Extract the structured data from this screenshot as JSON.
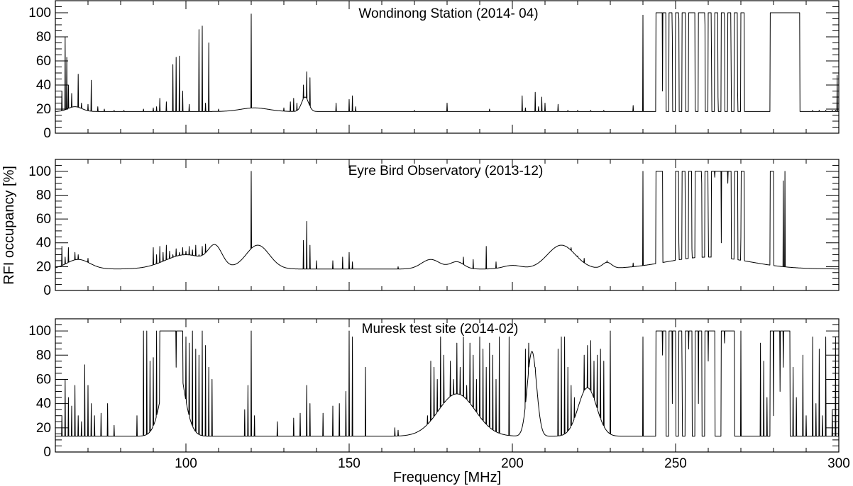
{
  "chart_data": [
    {
      "type": "line",
      "title": "Wondinong Station (2014- 04)",
      "xlim": [
        60,
        300
      ],
      "ylim": [
        0,
        110
      ],
      "y_ticks": [
        0,
        20,
        40,
        60,
        80,
        100
      ],
      "x_tick_labels_shown": false,
      "baseline": 18,
      "spikes": [
        [
          62,
          35
        ],
        [
          63,
          80
        ],
        [
          63.5,
          63
        ],
        [
          64,
          40
        ],
        [
          65,
          33
        ],
        [
          66,
          22
        ],
        [
          67,
          49
        ],
        [
          68,
          25
        ],
        [
          70,
          24
        ],
        [
          71,
          44
        ],
        [
          73,
          22
        ],
        [
          75,
          20
        ],
        [
          78,
          19
        ],
        [
          81,
          19
        ],
        [
          87,
          20
        ],
        [
          90,
          21
        ],
        [
          91,
          22
        ],
        [
          92,
          29
        ],
        [
          94,
          26
        ],
        [
          96,
          57
        ],
        [
          97,
          63
        ],
        [
          98,
          64
        ],
        [
          99,
          35
        ],
        [
          101,
          24
        ],
        [
          104,
          86
        ],
        [
          105,
          89
        ],
        [
          106,
          25
        ],
        [
          107,
          75
        ],
        [
          110,
          20
        ],
        [
          115,
          19
        ],
        [
          120,
          99
        ],
        [
          125,
          20
        ],
        [
          130,
          21
        ],
        [
          132,
          26
        ],
        [
          133,
          29
        ],
        [
          134,
          25
        ],
        [
          136,
          40
        ],
        [
          137,
          51
        ],
        [
          138,
          46
        ],
        [
          146,
          25
        ],
        [
          150,
          28
        ],
        [
          151,
          31
        ],
        [
          152,
          22
        ],
        [
          170,
          19
        ],
        [
          180,
          25
        ],
        [
          193,
          20
        ],
        [
          203,
          31
        ],
        [
          204,
          21
        ],
        [
          207,
          34
        ],
        [
          208,
          22
        ],
        [
          209,
          30
        ],
        [
          210,
          25
        ],
        [
          214,
          24
        ],
        [
          217,
          19
        ],
        [
          220,
          19
        ],
        [
          224,
          19
        ],
        [
          228,
          19
        ],
        [
          237,
          23
        ],
        [
          240,
          98
        ],
        [
          292,
          19
        ],
        [
          294,
          19
        ],
        [
          296,
          19
        ],
        [
          298,
          19
        ],
        [
          299,
          19
        ],
        [
          299.5,
          48
        ]
      ],
      "bumps": [
        [
          66,
          3,
          4
        ],
        [
          121,
          6,
          3
        ],
        [
          136.5,
          1.5,
          12
        ]
      ],
      "blocks": [
        [
          244,
          247,
          100
        ],
        [
          248,
          249,
          100
        ],
        [
          250,
          251,
          100
        ],
        [
          252,
          253,
          100
        ],
        [
          254,
          256,
          100
        ],
        [
          257,
          259,
          100
        ],
        [
          260,
          261,
          100
        ],
        [
          262,
          263,
          100
        ],
        [
          264,
          265,
          100
        ],
        [
          266,
          267,
          100
        ],
        [
          268,
          269,
          100
        ],
        [
          270,
          271,
          100
        ],
        [
          279,
          288,
          100
        ]
      ],
      "dips": [
        [
          246,
          35
        ],
        [
          249,
          80
        ],
        [
          251,
          95
        ],
        [
          256,
          20
        ],
        [
          259,
          90
        ],
        [
          261,
          60
        ],
        [
          263,
          30
        ],
        [
          265,
          95
        ],
        [
          267,
          60
        ],
        [
          269,
          35
        ]
      ]
    },
    {
      "type": "line",
      "title": "Eyre Bird Observatory (2013-12)",
      "xlim": [
        60,
        300
      ],
      "ylim": [
        0,
        110
      ],
      "y_ticks": [
        0,
        20,
        40,
        60,
        80,
        100
      ],
      "x_tick_labels_shown": false,
      "baseline": 18,
      "spikes": [
        [
          62,
          37
        ],
        [
          63,
          28
        ],
        [
          64,
          36
        ],
        [
          66,
          32
        ],
        [
          67,
          30
        ],
        [
          70,
          27
        ],
        [
          90,
          36
        ],
        [
          91,
          30
        ],
        [
          92,
          37
        ],
        [
          93,
          32
        ],
        [
          94,
          38
        ],
        [
          95,
          33
        ],
        [
          96,
          30
        ],
        [
          97,
          35
        ],
        [
          98,
          32
        ],
        [
          99,
          36
        ],
        [
          100,
          33
        ],
        [
          101,
          37
        ],
        [
          102,
          34
        ],
        [
          103,
          38
        ],
        [
          104,
          30
        ],
        [
          105,
          37
        ],
        [
          106,
          39
        ],
        [
          107,
          33
        ],
        [
          108,
          36
        ],
        [
          120,
          100
        ],
        [
          136,
          42
        ],
        [
          137,
          58
        ],
        [
          138,
          38
        ],
        [
          140,
          25
        ],
        [
          145,
          25
        ],
        [
          148,
          28
        ],
        [
          150,
          32
        ],
        [
          151,
          24
        ],
        [
          165,
          20
        ],
        [
          180,
          22
        ],
        [
          185,
          28
        ],
        [
          188,
          26
        ],
        [
          192,
          37
        ],
        [
          195,
          24
        ],
        [
          210,
          28
        ],
        [
          212,
          27
        ],
        [
          218,
          36
        ],
        [
          220,
          29
        ],
        [
          222,
          27
        ],
        [
          229,
          25
        ],
        [
          237,
          23
        ],
        [
          240,
          100
        ],
        [
          280,
          100
        ],
        [
          283,
          92
        ],
        [
          283.5,
          100
        ]
      ],
      "bumps": [
        [
          67,
          5,
          8
        ],
        [
          100,
          9,
          12
        ],
        [
          109,
          3,
          16
        ],
        [
          122,
          5,
          20
        ],
        [
          175,
          4,
          8
        ],
        [
          183,
          3,
          6
        ],
        [
          200,
          4,
          3
        ],
        [
          215,
          6,
          20
        ],
        [
          229,
          2,
          5
        ],
        [
          260,
          18,
          10
        ]
      ],
      "blocks": [
        [
          244,
          246,
          100
        ],
        [
          250,
          251,
          100
        ],
        [
          252,
          253,
          100
        ],
        [
          254,
          255,
          100
        ],
        [
          256,
          258,
          100
        ],
        [
          259,
          260,
          100
        ],
        [
          261,
          267,
          100
        ],
        [
          268,
          269,
          100
        ],
        [
          270,
          271,
          100
        ],
        [
          279,
          280,
          100
        ]
      ],
      "dips": [
        [
          251,
          40
        ],
        [
          253,
          50
        ],
        [
          255,
          35
        ],
        [
          258,
          90
        ],
        [
          260,
          60
        ],
        [
          262,
          95
        ],
        [
          264,
          40
        ],
        [
          266,
          90
        ],
        [
          268,
          50
        ],
        [
          270,
          45
        ]
      ]
    },
    {
      "type": "line",
      "title": "Muresk test site (2014-02)",
      "xlim": [
        60,
        300
      ],
      "ylim": [
        0,
        110
      ],
      "y_ticks": [
        0,
        20,
        40,
        60,
        80,
        100
      ],
      "x_tick_labels": [
        100,
        150,
        200,
        250,
        300
      ],
      "xlabel": "Frequency [MHz]",
      "ylabel": "RFI occupancy [%]",
      "baseline": 13,
      "spikes": [
        [
          61,
          10
        ],
        [
          62,
          30
        ],
        [
          63,
          60
        ],
        [
          64,
          45
        ],
        [
          65,
          38
        ],
        [
          66,
          55
        ],
        [
          67,
          30
        ],
        [
          68,
          25
        ],
        [
          69,
          72
        ],
        [
          70,
          55
        ],
        [
          71,
          40
        ],
        [
          72,
          30
        ],
        [
          74,
          32
        ],
        [
          76,
          40
        ],
        [
          78,
          22
        ],
        [
          85,
          30
        ],
        [
          87,
          100
        ],
        [
          88,
          100
        ],
        [
          89,
          75
        ],
        [
          90,
          78
        ],
        [
          91,
          100
        ],
        [
          100,
          95
        ],
        [
          101,
          90
        ],
        [
          102,
          100
        ],
        [
          103,
          85
        ],
        [
          104,
          80
        ],
        [
          105,
          100
        ],
        [
          106,
          88
        ],
        [
          107,
          70
        ],
        [
          108,
          60
        ],
        [
          118,
          35
        ],
        [
          119,
          55
        ],
        [
          120,
          100
        ],
        [
          121,
          30
        ],
        [
          128,
          25
        ],
        [
          133,
          28
        ],
        [
          135,
          32
        ],
        [
          137,
          55
        ],
        [
          138,
          40
        ],
        [
          142,
          32
        ],
        [
          145,
          38
        ],
        [
          147,
          40
        ],
        [
          149,
          50
        ],
        [
          150,
          100
        ],
        [
          151,
          95
        ],
        [
          155,
          70
        ],
        [
          164,
          20
        ],
        [
          165,
          18
        ],
        [
          174,
          30
        ],
        [
          175,
          75
        ],
        [
          176,
          70
        ],
        [
          177,
          60
        ],
        [
          178,
          95
        ],
        [
          179,
          80
        ],
        [
          181,
          75
        ],
        [
          182,
          60
        ],
        [
          183,
          90
        ],
        [
          184,
          70
        ],
        [
          185,
          95
        ],
        [
          186,
          55
        ],
        [
          187,
          90
        ],
        [
          188,
          80
        ],
        [
          189,
          60
        ],
        [
          190,
          95
        ],
        [
          191,
          85
        ],
        [
          192,
          70
        ],
        [
          193,
          90
        ],
        [
          194,
          80
        ],
        [
          195,
          60
        ],
        [
          196,
          95
        ],
        [
          199,
          95
        ],
        [
          204,
          85
        ],
        [
          205,
          90
        ],
        [
          206,
          80
        ],
        [
          207,
          70
        ],
        [
          214,
          85
        ],
        [
          215,
          95
        ],
        [
          216,
          95
        ],
        [
          217,
          70
        ],
        [
          218,
          55
        ],
        [
          219,
          45
        ],
        [
          222,
          80
        ],
        [
          223,
          88
        ],
        [
          224,
          92
        ],
        [
          225,
          75
        ],
        [
          226,
          80
        ],
        [
          227,
          85
        ],
        [
          228,
          75
        ],
        [
          230,
          100
        ],
        [
          240,
          95
        ],
        [
          244,
          100
        ],
        [
          248,
          100
        ],
        [
          251,
          100
        ],
        [
          253,
          100
        ],
        [
          256,
          100
        ],
        [
          259,
          100
        ],
        [
          262,
          100
        ],
        [
          264,
          100
        ],
        [
          267,
          100
        ],
        [
          270,
          100
        ],
        [
          276,
          90
        ],
        [
          277,
          75
        ],
        [
          278,
          45
        ],
        [
          279,
          100
        ],
        [
          281,
          60
        ],
        [
          284,
          100
        ],
        [
          286,
          70
        ],
        [
          287,
          45
        ],
        [
          289,
          80
        ],
        [
          290,
          30
        ],
        [
          292,
          95
        ],
        [
          293,
          40
        ],
        [
          294,
          85
        ],
        [
          295,
          30
        ],
        [
          296,
          95
        ],
        [
          298,
          35
        ],
        [
          299,
          95
        ],
        [
          300,
          60
        ]
      ],
      "bumps": [
        [
          96,
          4,
          80
        ],
        [
          117,
          2,
          0
        ],
        [
          183,
          8,
          35
        ],
        [
          206,
          2,
          70
        ],
        [
          223,
          4,
          40
        ]
      ],
      "blocks": [
        [
          92,
          99,
          100
        ],
        [
          244,
          247,
          100
        ],
        [
          248,
          250,
          100
        ],
        [
          251,
          252,
          100
        ],
        [
          253,
          255,
          100
        ],
        [
          256,
          258,
          100
        ],
        [
          259,
          262,
          100
        ],
        [
          264,
          268,
          100
        ],
        [
          279,
          285,
          100
        ]
      ],
      "dips": [
        [
          97,
          70
        ],
        [
          246,
          80
        ],
        [
          249,
          40
        ],
        [
          252,
          60
        ],
        [
          254,
          85
        ],
        [
          257,
          40
        ],
        [
          260,
          75
        ],
        [
          262,
          45
        ],
        [
          265,
          90
        ],
        [
          267,
          55
        ],
        [
          280,
          30
        ],
        [
          282,
          50
        ],
        [
          283,
          70
        ]
      ]
    }
  ]
}
